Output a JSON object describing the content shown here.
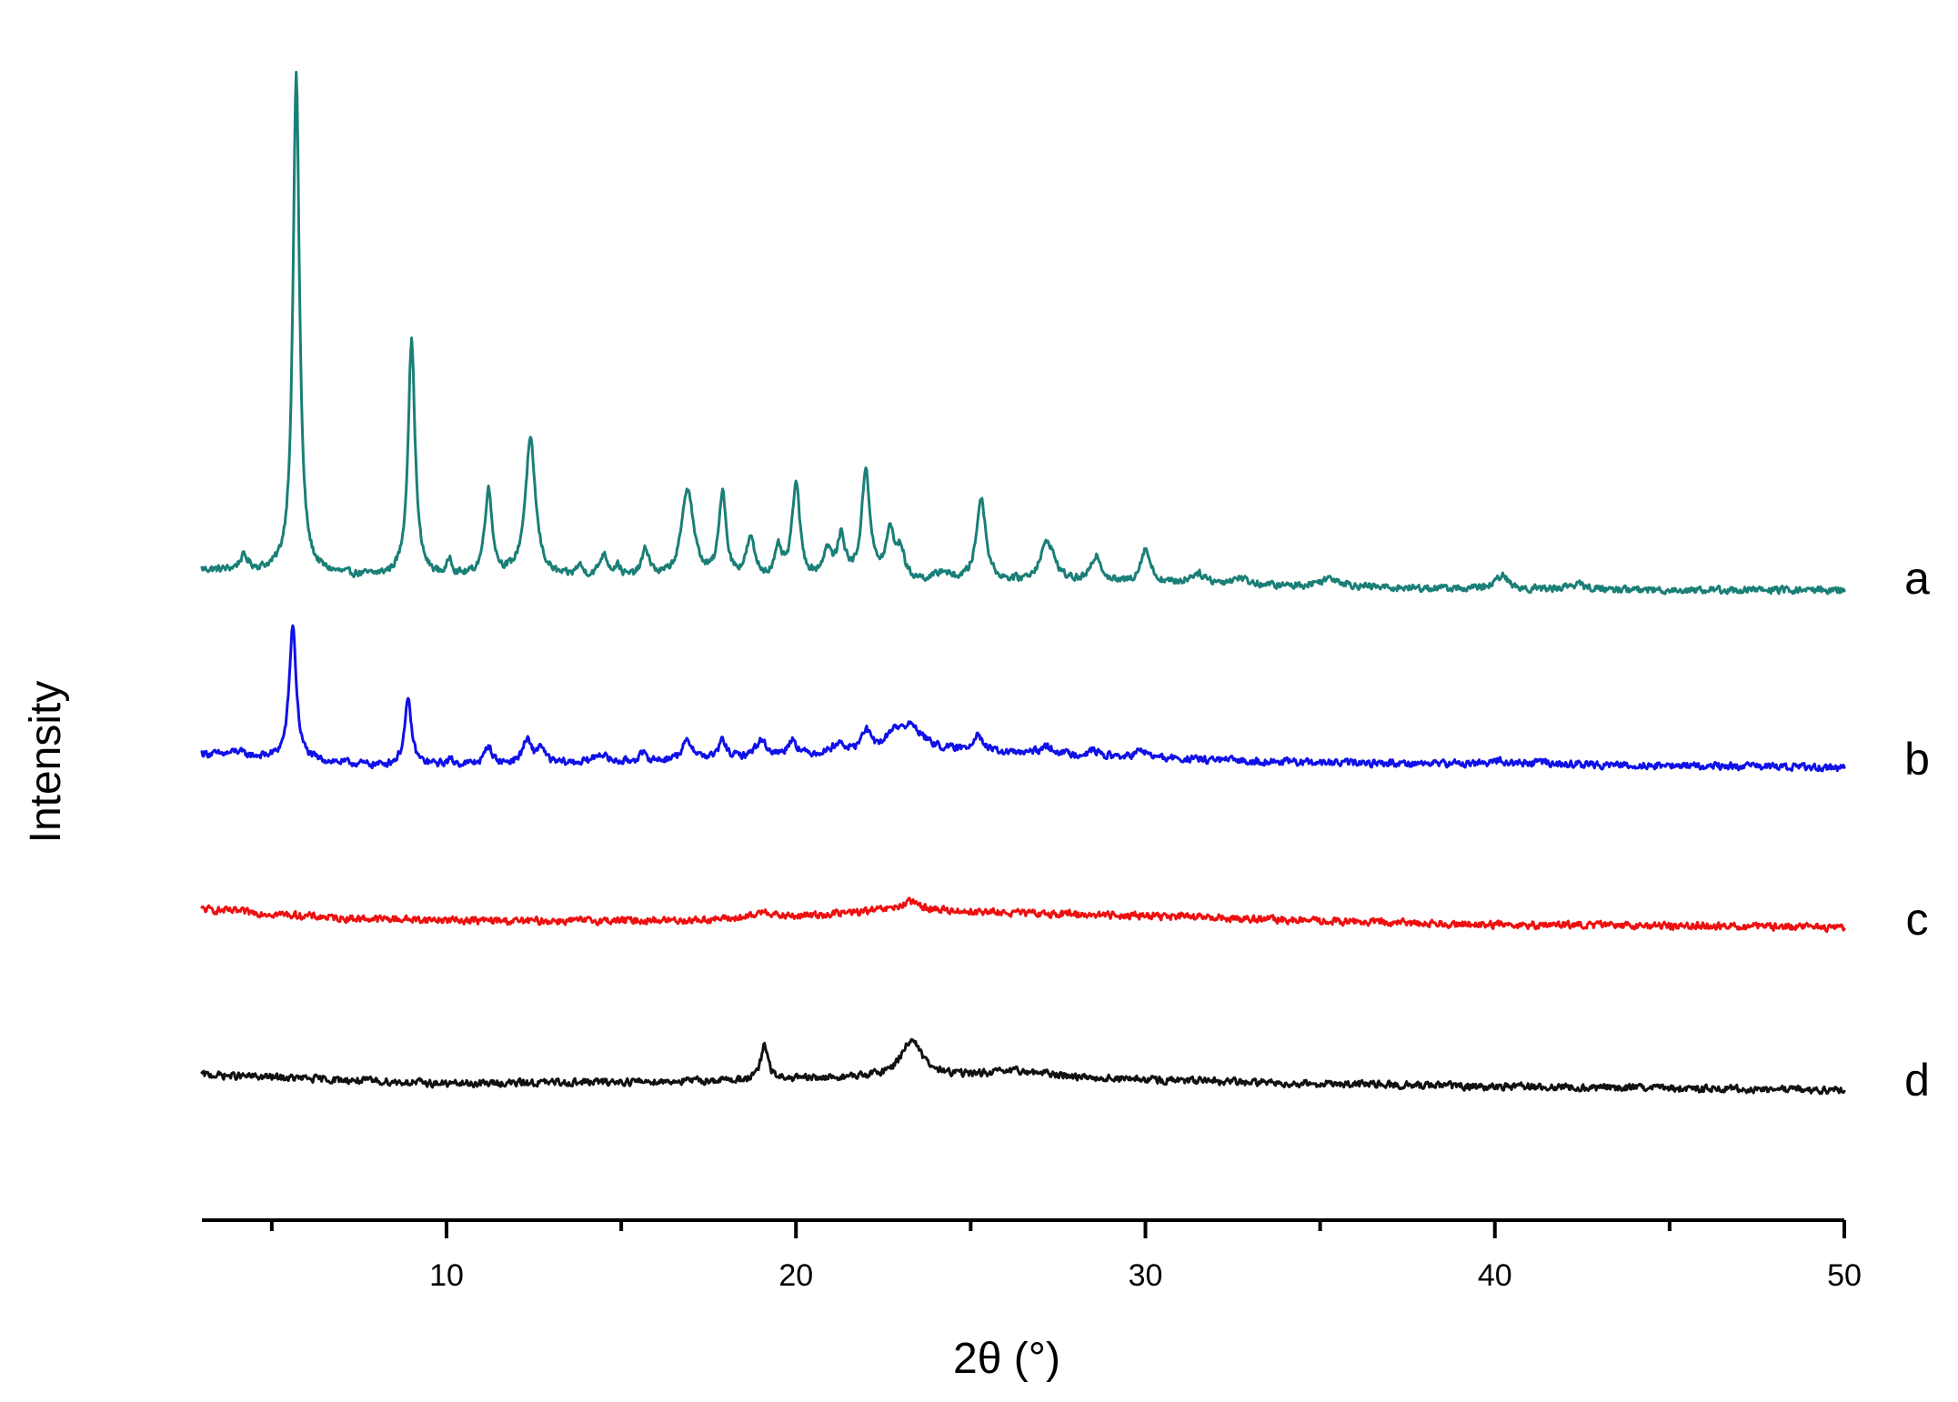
{
  "chart_data": {
    "type": "line",
    "title": "",
    "xlabel": "2θ (°)",
    "ylabel": "Intensity",
    "xlim": [
      3,
      50
    ],
    "x_ticks_major": [
      10,
      20,
      30,
      40,
      50
    ],
    "x_ticks_minor": [
      5,
      15,
      25,
      35,
      45
    ],
    "y_ticks": false,
    "grid": false,
    "legend": "none; series labelled a–d at right end of each trace",
    "series": [
      {
        "name": "a",
        "color": "#1a7f77",
        "baseline": [
          [
            3,
            8
          ],
          [
            8,
            0
          ],
          [
            15,
            -3
          ],
          [
            20,
            -4
          ],
          [
            25,
            -6
          ],
          [
            30,
            -8
          ],
          [
            35,
            -11
          ],
          [
            40,
            -13
          ],
          [
            45,
            -14
          ],
          [
            50,
            -14
          ]
        ],
        "peaks": [
          [
            4.2,
            15,
            0.15
          ],
          [
            5.7,
            550,
            0.11
          ],
          [
            9.0,
            260,
            0.12
          ],
          [
            10.1,
            18,
            0.08
          ],
          [
            11.2,
            95,
            0.13
          ],
          [
            12.4,
            150,
            0.18
          ],
          [
            13.8,
            12,
            0.12
          ],
          [
            14.5,
            25,
            0.15
          ],
          [
            14.9,
            12,
            0.1
          ],
          [
            15.7,
            30,
            0.14
          ],
          [
            16.9,
            100,
            0.2
          ],
          [
            17.9,
            95,
            0.12
          ],
          [
            18.7,
            42,
            0.15
          ],
          [
            19.5,
            30,
            0.12
          ],
          [
            20.0,
            105,
            0.13
          ],
          [
            20.9,
            30,
            0.15
          ],
          [
            21.3,
            45,
            0.13
          ],
          [
            22.0,
            120,
            0.14
          ],
          [
            22.7,
            52,
            0.15
          ],
          [
            23.0,
            30,
            0.12
          ],
          [
            24.2,
            10,
            0.2
          ],
          [
            25.3,
            92,
            0.16
          ],
          [
            27.2,
            45,
            0.25
          ],
          [
            28.6,
            30,
            0.17
          ],
          [
            30.0,
            38,
            0.17
          ],
          [
            31.5,
            12,
            0.3
          ],
          [
            32.7,
            8,
            0.3
          ],
          [
            35.3,
            10,
            0.4
          ],
          [
            40.2,
            15,
            0.2
          ],
          [
            42.3,
            6,
            0.3
          ]
        ]
      },
      {
        "name": "b",
        "color": "#1010e8",
        "baseline": [
          [
            3,
            5
          ],
          [
            8,
            -8
          ],
          [
            15,
            -5
          ],
          [
            20,
            2
          ],
          [
            23,
            10
          ],
          [
            26,
            5
          ],
          [
            30,
            0
          ],
          [
            35,
            -5
          ],
          [
            40,
            -6
          ],
          [
            45,
            -8
          ],
          [
            50,
            -10
          ]
        ],
        "peaks": [
          [
            4.0,
            5,
            0.2
          ],
          [
            5.6,
            148,
            0.12
          ],
          [
            8.9,
            70,
            0.12
          ],
          [
            10.1,
            5,
            0.1
          ],
          [
            11.2,
            20,
            0.12
          ],
          [
            12.3,
            25,
            0.15
          ],
          [
            12.7,
            18,
            0.12
          ],
          [
            14.4,
            10,
            0.2
          ],
          [
            15.6,
            8,
            0.15
          ],
          [
            16.9,
            20,
            0.2
          ],
          [
            17.9,
            20,
            0.12
          ],
          [
            19.0,
            18,
            0.2
          ],
          [
            19.9,
            18,
            0.15
          ],
          [
            21.2,
            10,
            0.2
          ],
          [
            22.0,
            22,
            0.14
          ],
          [
            22.8,
            15,
            0.2
          ],
          [
            23.3,
            25,
            0.4
          ],
          [
            25.2,
            20,
            0.16
          ],
          [
            27.2,
            8,
            0.3
          ],
          [
            28.5,
            6,
            0.2
          ],
          [
            29.9,
            8,
            0.2
          ],
          [
            40.1,
            4,
            0.2
          ],
          [
            41.3,
            3,
            0.2
          ]
        ]
      },
      {
        "name": "c",
        "color": "#ee1010",
        "baseline": [
          [
            3,
            10
          ],
          [
            7,
            0
          ],
          [
            12,
            -3
          ],
          [
            17,
            -2
          ],
          [
            20,
            2
          ],
          [
            23,
            10
          ],
          [
            26,
            6
          ],
          [
            30,
            3
          ],
          [
            35,
            -3
          ],
          [
            40,
            -7
          ],
          [
            45,
            -8
          ],
          [
            50,
            -10
          ]
        ],
        "peaks": [
          [
            19.1,
            8,
            0.2
          ],
          [
            23.3,
            8,
            0.3
          ]
        ]
      },
      {
        "name": "d",
        "color": "#111111",
        "baseline": [
          [
            3,
            5
          ],
          [
            10,
            -5
          ],
          [
            17,
            -2
          ],
          [
            20,
            0
          ],
          [
            22,
            2
          ],
          [
            23,
            3
          ],
          [
            26,
            4
          ],
          [
            30,
            -1
          ],
          [
            35,
            -5
          ],
          [
            40,
            -8
          ],
          [
            45,
            -10
          ],
          [
            50,
            -12
          ]
        ],
        "peaks": [
          [
            19.1,
            38,
            0.12
          ],
          [
            23.3,
            40,
            0.35
          ],
          [
            26.5,
            5,
            1.0
          ]
        ]
      }
    ]
  }
}
